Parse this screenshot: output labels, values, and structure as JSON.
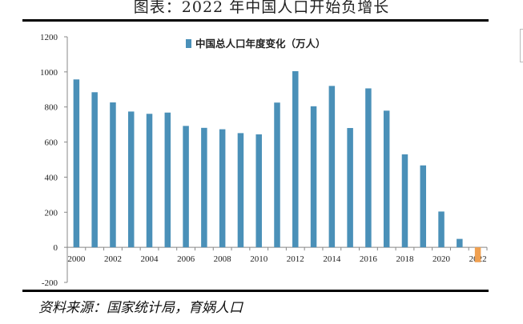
{
  "header": {
    "title": "图表：2022 年中国人口开始负增长"
  },
  "footer": {
    "source": "资料来源：国家统计局，育娲人口"
  },
  "colors": {
    "positive_bar": "#4a90b8",
    "negative_bar": "#f0a050",
    "axis": "#888888"
  },
  "chart_data": {
    "type": "bar",
    "title": "",
    "xlabel": "",
    "ylabel": "",
    "ylim": [
      -200,
      1200
    ],
    "yticks": [
      -200,
      0,
      200,
      400,
      600,
      800,
      1000,
      1200
    ],
    "x_tick_labels": [
      "2000",
      "2002",
      "2004",
      "2006",
      "2008",
      "2010",
      "2012",
      "2014",
      "2016",
      "2018",
      "2020",
      "2022"
    ],
    "categories": [
      "2000",
      "2001",
      "2002",
      "2003",
      "2004",
      "2005",
      "2006",
      "2007",
      "2008",
      "2009",
      "2010",
      "2011",
      "2012",
      "2013",
      "2014",
      "2015",
      "2016",
      "2017",
      "2018",
      "2019",
      "2020",
      "2021",
      "2022"
    ],
    "legend_position": "top-center",
    "grid": false,
    "series": [
      {
        "name": "中国总人口年度变化（万人）",
        "values": [
          957,
          884,
          826,
          774,
          761,
          768,
          692,
          681,
          673,
          651,
          644,
          825,
          1004,
          804,
          920,
          680,
          906,
          779,
          530,
          467,
          204,
          48,
          -85
        ]
      }
    ]
  }
}
